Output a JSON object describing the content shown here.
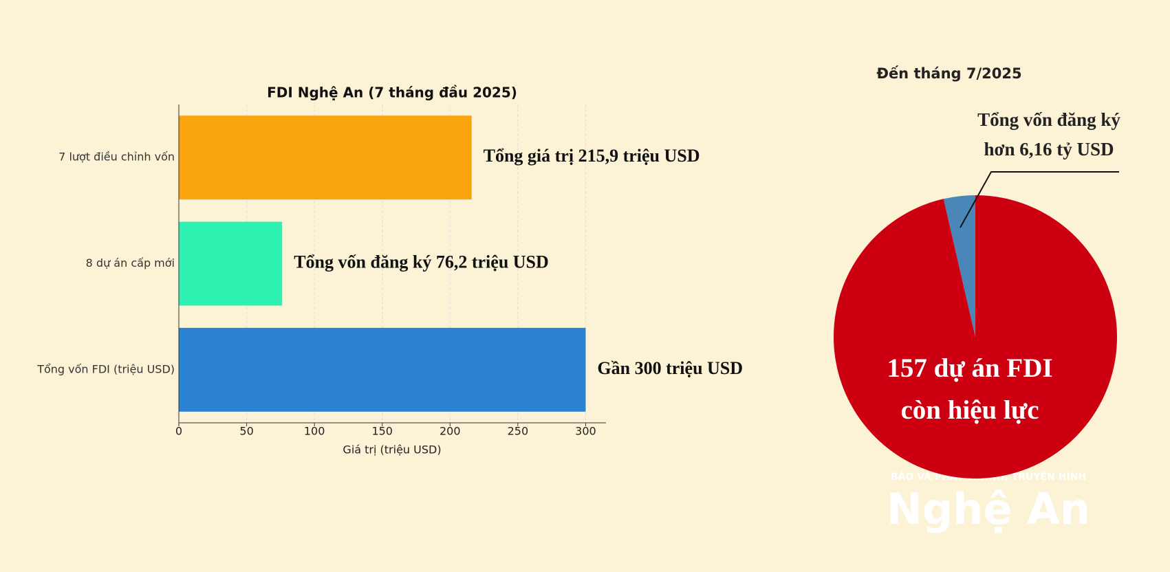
{
  "chart_data": [
    {
      "type": "bar",
      "orientation": "horizontal",
      "title": "FDI Nghệ An (7 tháng đầu 2025)",
      "categories": [
        "7 lượt điều chỉnh vốn",
        "8 dự án cấp mới",
        "Tổng vốn FDI (triệu USD)"
      ],
      "values": [
        215.9,
        76.2,
        300
      ],
      "value_labels": [
        "Tổng giá trị 215,9 triệu USD",
        "Tổng vốn đăng ký 76,2 triệu USD",
        "Gần 300 triệu USD"
      ],
      "colors": [
        "#f9a30f",
        "#2ef0b0",
        "#2a82d0"
      ],
      "x_label": "Giá trị (triệu USD)",
      "xlim": [
        0,
        315
      ],
      "xticks": [
        0,
        50,
        100,
        150,
        200,
        250,
        300
      ],
      "grid": true
    },
    {
      "type": "pie",
      "title": "Đến tháng 7/2025",
      "values": [
        96.4,
        3.6
      ],
      "labels": [
        [
          "157 dự án FDI",
          "còn hiệu lực"
        ],
        [
          "Tổng vốn đăng ký",
          "hơn 6,16 tỷ USD"
        ]
      ],
      "colors": [
        "#cc0011",
        "#4a86b8"
      ]
    }
  ],
  "watermark": [
    "BÁO VÀ PHÁT THANH, TRUYỀN HÌNH",
    "Nghệ An"
  ]
}
